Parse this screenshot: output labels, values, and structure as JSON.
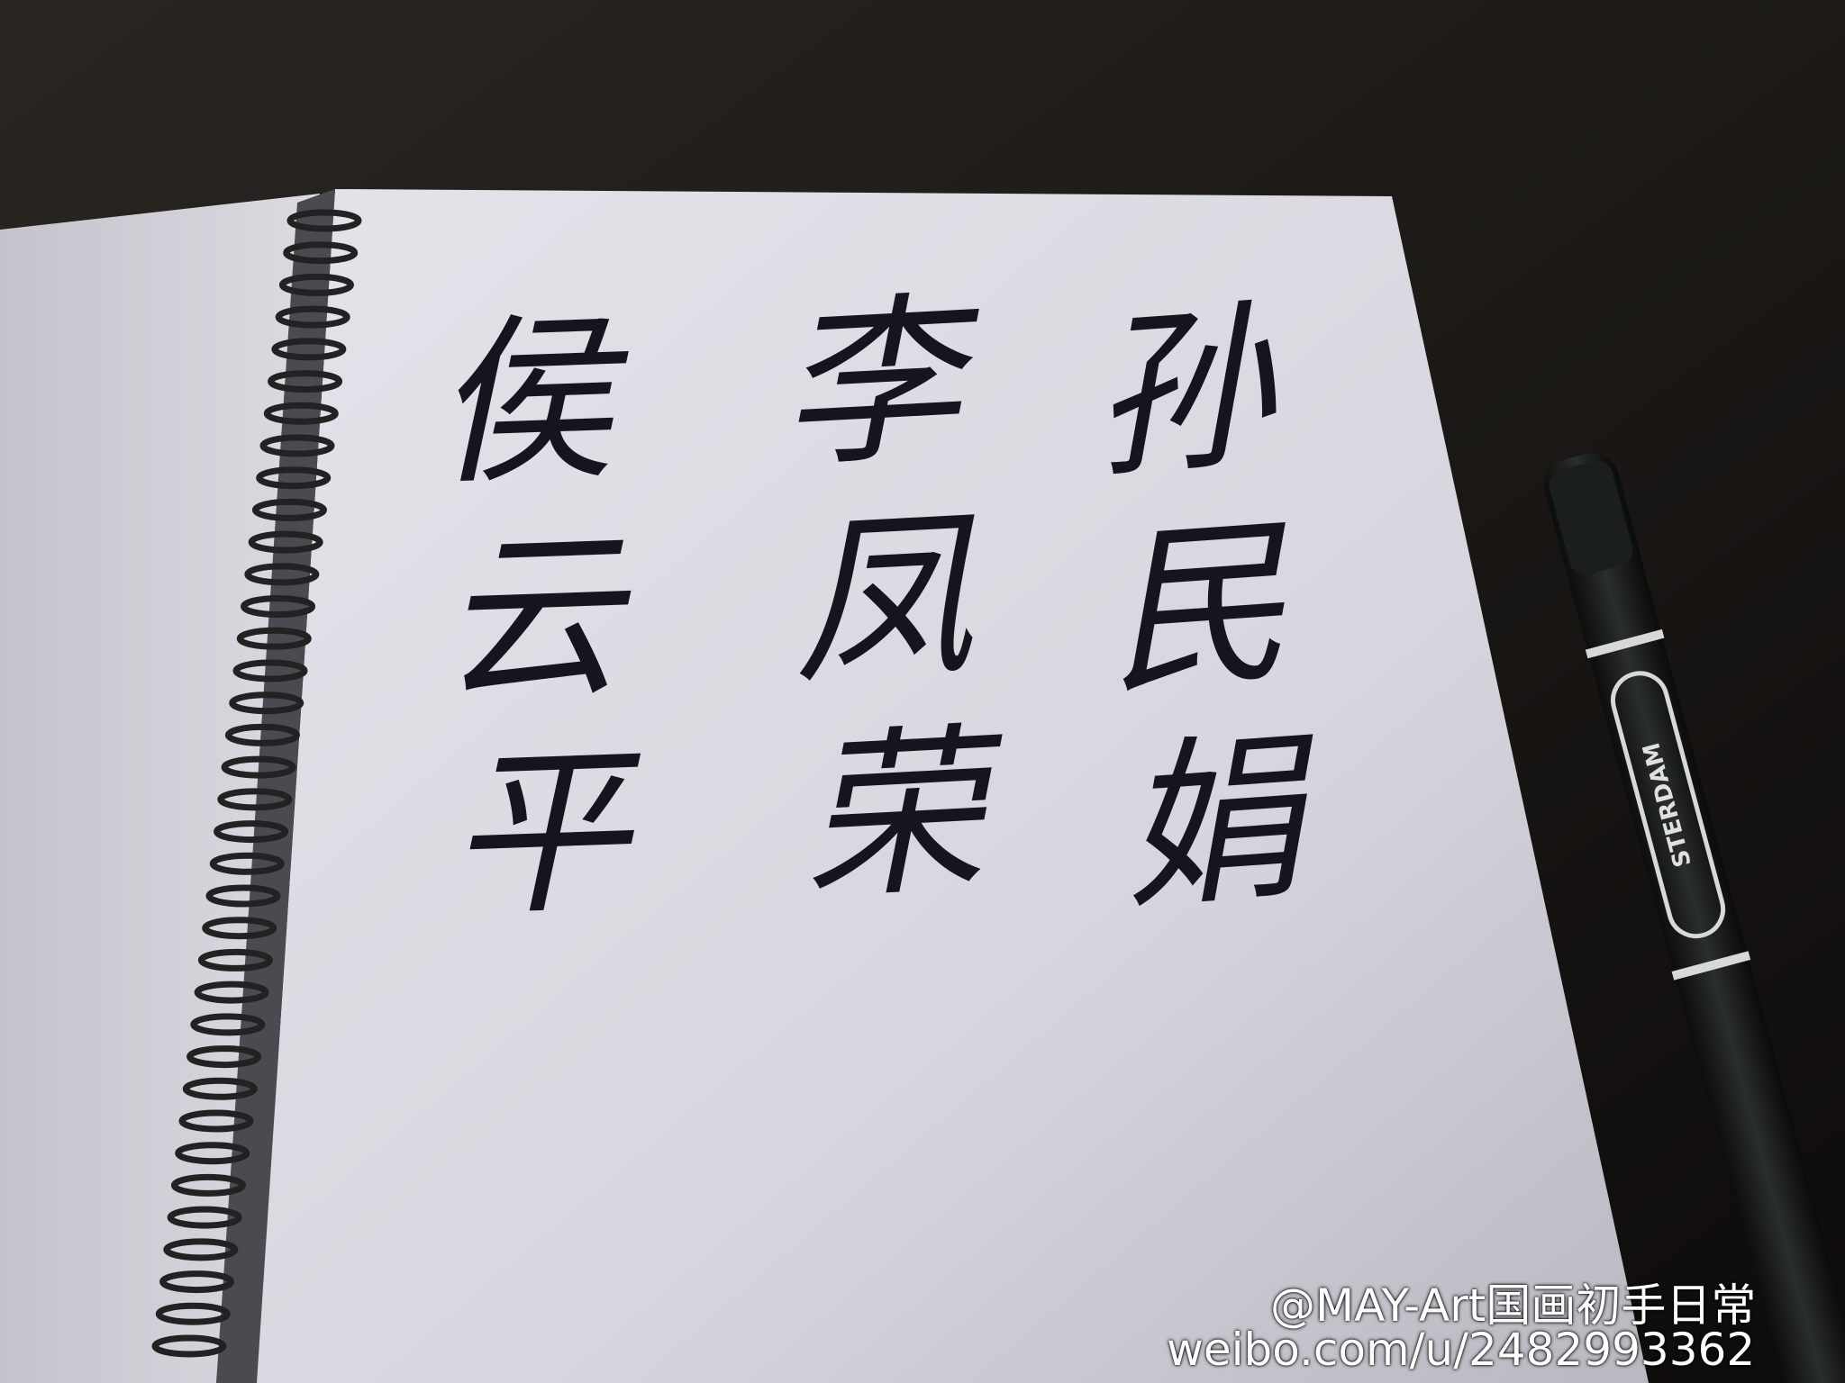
{
  "handwriting": {
    "columns": [
      "孙民娟",
      "李凤荣",
      "侯云平"
    ]
  },
  "pen": {
    "label": "STERDAM"
  },
  "watermark": {
    "handle": "@MAY-Art国画初手日常",
    "url": "weibo.com/u/2482993362"
  }
}
